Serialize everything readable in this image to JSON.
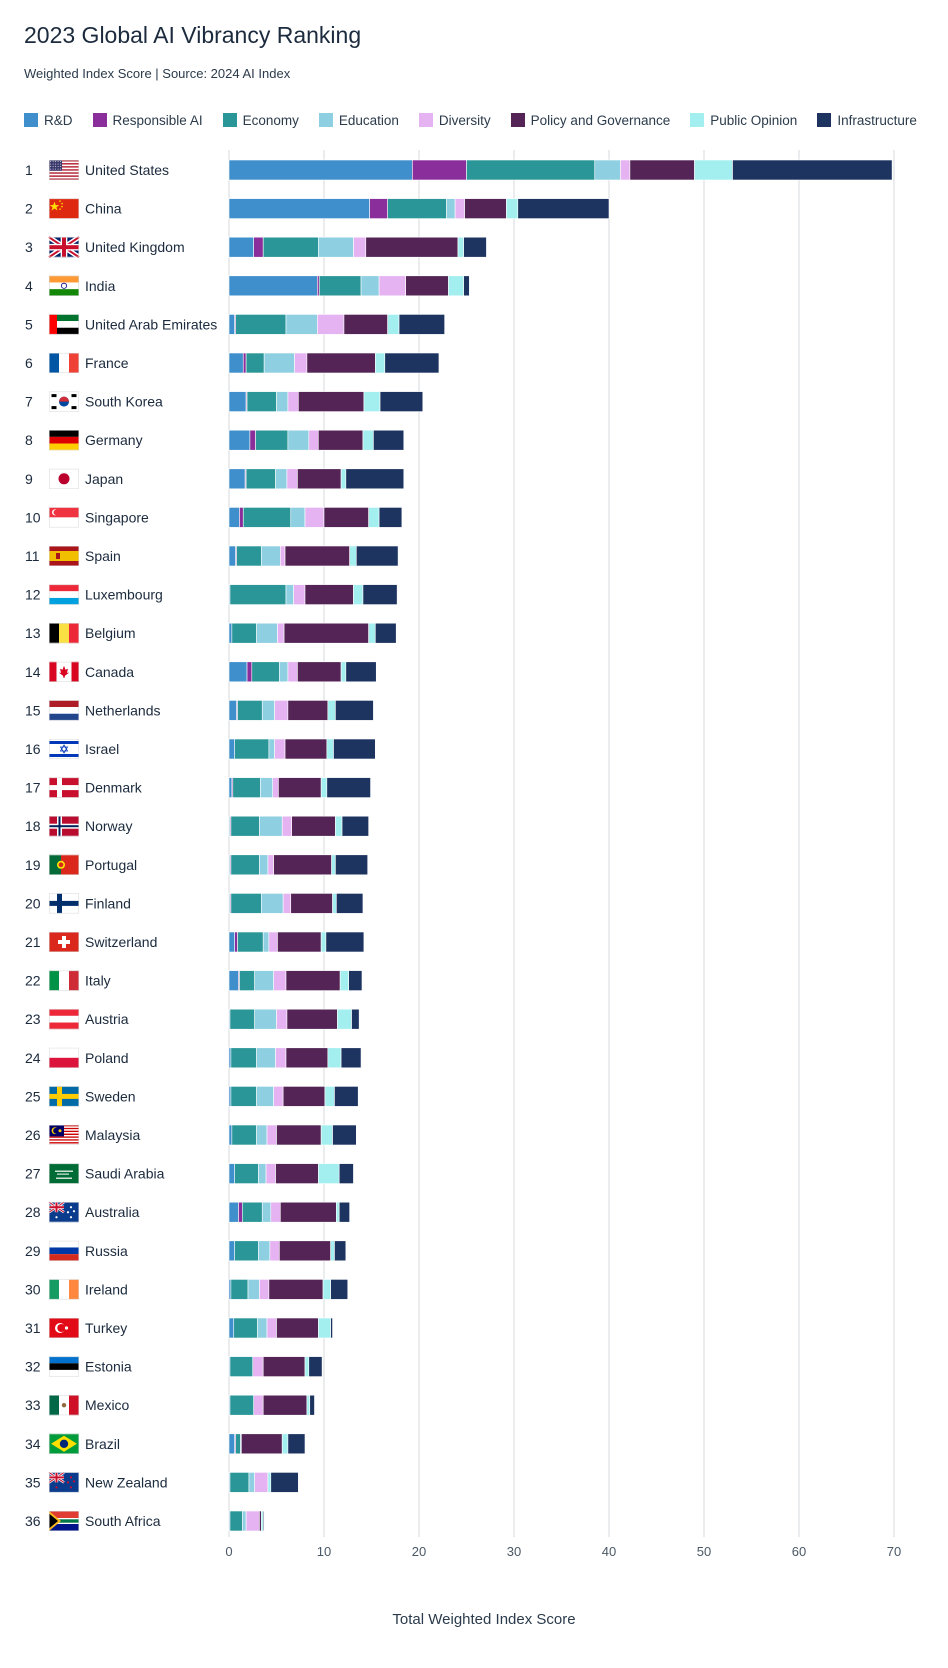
{
  "chart_data": {
    "type": "bar",
    "orientation": "horizontal",
    "stacked": true,
    "title": "2023 Global AI Vibrancy Ranking",
    "subtitle": "Weighted Index Score | Source: 2024 AI Index",
    "xlabel": "Total Weighted Index Score",
    "xlim": [
      0,
      70
    ],
    "xticks": [
      "0",
      "10",
      "20",
      "30",
      "40",
      "50",
      "60",
      "70"
    ],
    "grid": true,
    "legend_position": "top",
    "series": [
      {
        "name": "R&D",
        "color": "#3f8fcc"
      },
      {
        "name": "Responsible AI",
        "color": "#8a2e9b"
      },
      {
        "name": "Economy",
        "color": "#2a9698"
      },
      {
        "name": "Education",
        "color": "#8ecfe1"
      },
      {
        "name": "Diversity",
        "color": "#e6b3f2"
      },
      {
        "name": "Policy and Governance",
        "color": "#532455"
      },
      {
        "name": "Public Opinion",
        "color": "#a3eff0"
      },
      {
        "name": "Infrastructure",
        "color": "#1d3461"
      }
    ],
    "rows": [
      {
        "rank": "1",
        "country": "United States",
        "flag": "us",
        "values": [
          19.3,
          5.7,
          13.5,
          2.7,
          1.0,
          6.8,
          4.0,
          16.8
        ]
      },
      {
        "rank": "2",
        "country": "China",
        "flag": "cn",
        "values": [
          14.8,
          1.9,
          6.2,
          0.9,
          1.0,
          4.4,
          1.2,
          9.6
        ]
      },
      {
        "rank": "3",
        "country": "United Kingdom",
        "flag": "gb",
        "values": [
          2.6,
          1.0,
          5.8,
          3.7,
          1.3,
          9.7,
          0.6,
          2.4
        ]
      },
      {
        "rank": "4",
        "country": "India",
        "flag": "in",
        "values": [
          9.3,
          0.2,
          4.4,
          1.9,
          2.8,
          4.5,
          1.6,
          0.6
        ]
      },
      {
        "rank": "5",
        "country": "United Arab Emirates",
        "flag": "ae",
        "values": [
          0.6,
          0.1,
          5.3,
          3.3,
          2.8,
          4.6,
          1.2,
          4.8
        ]
      },
      {
        "rank": "6",
        "country": "France",
        "flag": "fr",
        "values": [
          1.5,
          0.3,
          1.9,
          3.2,
          1.3,
          7.2,
          1.0,
          5.7
        ]
      },
      {
        "rank": "7",
        "country": "South Korea",
        "flag": "kr",
        "values": [
          1.8,
          0.1,
          3.1,
          1.2,
          1.1,
          6.9,
          1.7,
          4.5
        ]
      },
      {
        "rank": "8",
        "country": "Germany",
        "flag": "de",
        "values": [
          2.2,
          0.6,
          3.4,
          2.2,
          1.0,
          4.7,
          1.1,
          3.2
        ]
      },
      {
        "rank": "9",
        "country": "Japan",
        "flag": "jp",
        "values": [
          1.7,
          0.1,
          3.1,
          1.2,
          1.1,
          4.6,
          0.5,
          6.1
        ]
      },
      {
        "rank": "10",
        "country": "Singapore",
        "flag": "sg",
        "values": [
          1.1,
          0.4,
          5.0,
          1.5,
          2.0,
          4.7,
          1.1,
          2.4
        ]
      },
      {
        "rank": "11",
        "country": "Spain",
        "flag": "es",
        "values": [
          0.7,
          0.1,
          2.6,
          2.0,
          0.5,
          6.8,
          0.7,
          4.4
        ]
      },
      {
        "rank": "12",
        "country": "Luxembourg",
        "flag": "lu",
        "values": [
          0.1,
          0.0,
          5.9,
          0.8,
          1.2,
          5.1,
          1.0,
          3.6
        ]
      },
      {
        "rank": "13",
        "country": "Belgium",
        "flag": "be",
        "values": [
          0.3,
          0.0,
          2.6,
          2.2,
          0.7,
          8.9,
          0.7,
          2.2
        ]
      },
      {
        "rank": "14",
        "country": "Canada",
        "flag": "ca",
        "values": [
          1.9,
          0.5,
          2.9,
          0.9,
          1.0,
          4.6,
          0.5,
          3.2
        ]
      },
      {
        "rank": "15",
        "country": "Netherlands",
        "flag": "nl",
        "values": [
          0.8,
          0.1,
          2.6,
          1.3,
          1.4,
          4.2,
          0.8,
          4.0
        ]
      },
      {
        "rank": "16",
        "country": "Israel",
        "flag": "il",
        "values": [
          0.6,
          0.0,
          3.6,
          0.6,
          1.1,
          4.4,
          0.7,
          4.4
        ]
      },
      {
        "rank": "17",
        "country": "Denmark",
        "flag": "dk",
        "values": [
          0.3,
          0.1,
          2.9,
          1.3,
          0.6,
          4.5,
          0.6,
          4.6
        ]
      },
      {
        "rank": "18",
        "country": "Norway",
        "flag": "no",
        "values": [
          0.1,
          0.1,
          3.0,
          2.4,
          1.0,
          4.6,
          0.7,
          2.8
        ]
      },
      {
        "rank": "19",
        "country": "Portugal",
        "flag": "pt",
        "values": [
          0.1,
          0.1,
          3.0,
          0.9,
          0.6,
          6.1,
          0.4,
          3.4
        ]
      },
      {
        "rank": "20",
        "country": "Finland",
        "flag": "fi",
        "values": [
          0.1,
          0.1,
          3.2,
          2.3,
          0.8,
          4.4,
          0.4,
          2.8
        ]
      },
      {
        "rank": "21",
        "country": "Switzerland",
        "flag": "ch",
        "values": [
          0.6,
          0.3,
          2.7,
          0.6,
          0.9,
          4.6,
          0.5,
          4.0
        ]
      },
      {
        "rank": "22",
        "country": "Italy",
        "flag": "it",
        "values": [
          1.0,
          0.1,
          1.6,
          2.0,
          1.3,
          5.7,
          0.9,
          1.4
        ]
      },
      {
        "rank": "23",
        "country": "Austria",
        "flag": "at",
        "values": [
          0.1,
          0.0,
          2.6,
          2.3,
          1.1,
          5.3,
          1.5,
          0.8
        ]
      },
      {
        "rank": "24",
        "country": "Poland",
        "flag": "pl",
        "values": [
          0.2,
          0.0,
          2.7,
          2.0,
          1.1,
          4.4,
          1.4,
          2.1
        ]
      },
      {
        "rank": "25",
        "country": "Sweden",
        "flag": "se",
        "values": [
          0.2,
          0.0,
          2.7,
          1.8,
          1.0,
          4.4,
          1.0,
          2.5
        ]
      },
      {
        "rank": "26",
        "country": "Malaysia",
        "flag": "my",
        "values": [
          0.3,
          0.0,
          2.6,
          1.1,
          1.0,
          4.7,
          1.2,
          2.5
        ]
      },
      {
        "rank": "27",
        "country": "Saudi Arabia",
        "flag": "sa",
        "values": [
          0.6,
          0.0,
          2.5,
          0.8,
          1.0,
          4.5,
          2.2,
          1.5
        ]
      },
      {
        "rank": "28",
        "country": "Australia",
        "flag": "au",
        "values": [
          1.0,
          0.4,
          2.1,
          0.9,
          1.0,
          5.9,
          0.3,
          1.1
        ]
      },
      {
        "rank": "29",
        "country": "Russia",
        "flag": "ru",
        "values": [
          0.6,
          0.0,
          2.5,
          1.2,
          1.0,
          5.4,
          0.4,
          1.2
        ]
      },
      {
        "rank": "30",
        "country": "Ireland",
        "flag": "ie",
        "values": [
          0.2,
          0.0,
          1.8,
          1.2,
          1.0,
          5.7,
          0.8,
          1.8
        ]
      },
      {
        "rank": "31",
        "country": "Turkey",
        "flag": "tr",
        "values": [
          0.5,
          0.0,
          2.5,
          1.0,
          1.0,
          4.4,
          1.3,
          0.2
        ]
      },
      {
        "rank": "32",
        "country": "Estonia",
        "flag": "ee",
        "values": [
          0.1,
          0.0,
          2.4,
          0.0,
          1.1,
          4.4,
          0.4,
          1.4
        ]
      },
      {
        "rank": "33",
        "country": "Mexico",
        "flag": "mx",
        "values": [
          0.1,
          0.0,
          2.5,
          0.0,
          1.0,
          4.6,
          0.3,
          0.5
        ]
      },
      {
        "rank": "34",
        "country": "Brazil",
        "flag": "br",
        "values": [
          0.6,
          0.1,
          0.5,
          0.1,
          0.0,
          4.3,
          0.6,
          1.8
        ]
      },
      {
        "rank": "35",
        "country": "New Zealand",
        "flag": "nz",
        "values": [
          0.1,
          0.0,
          2.0,
          0.6,
          1.4,
          0.0,
          0.3,
          2.9
        ]
      },
      {
        "rank": "36",
        "country": "South Africa",
        "flag": "za",
        "values": [
          0.1,
          0.0,
          1.3,
          0.4,
          1.4,
          0.2,
          0.2,
          0.1
        ]
      }
    ]
  }
}
